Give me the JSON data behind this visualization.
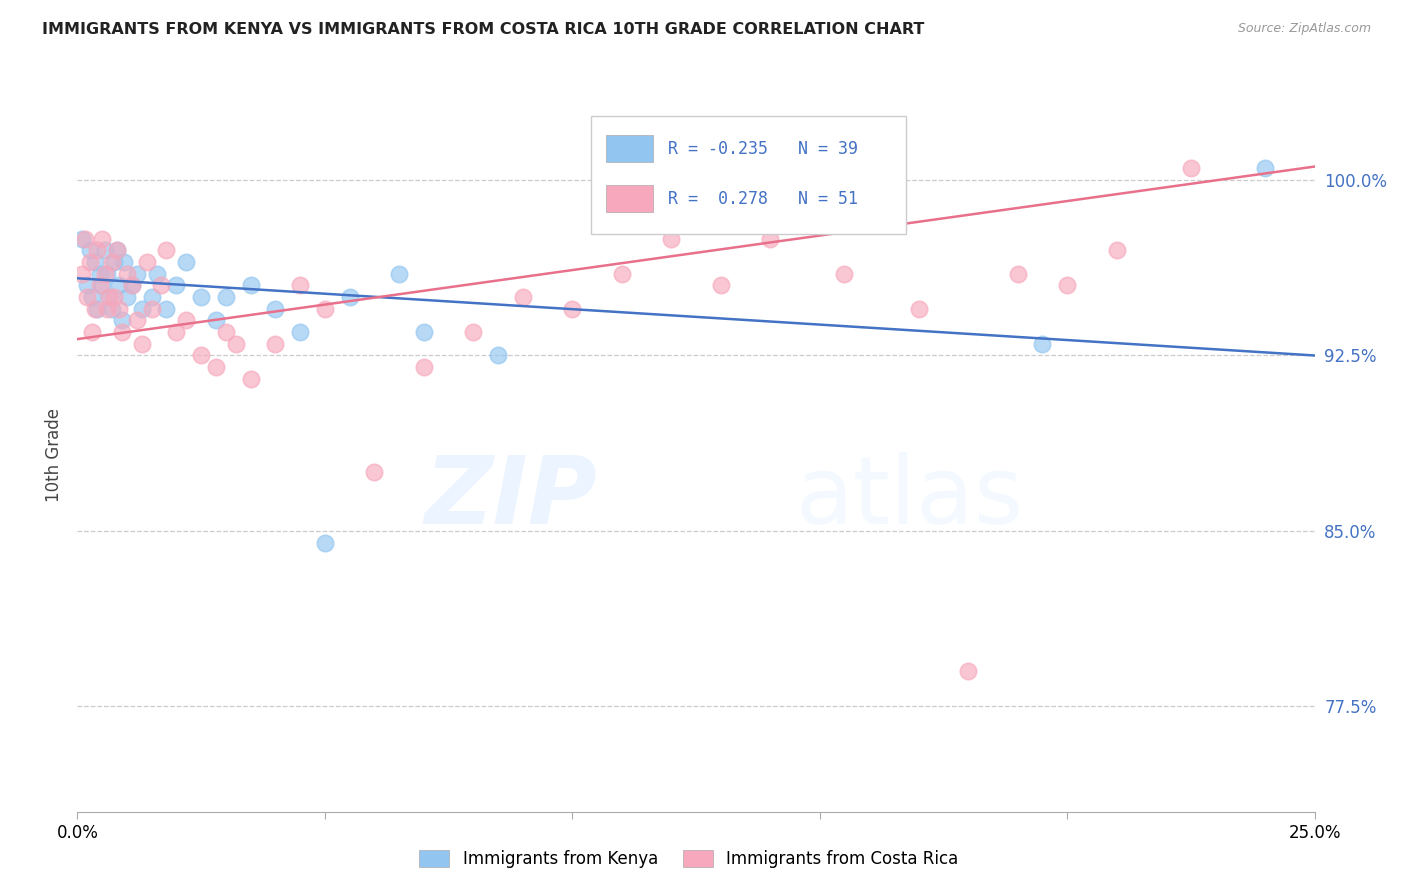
{
  "title": "IMMIGRANTS FROM KENYA VS IMMIGRANTS FROM COSTA RICA 10TH GRADE CORRELATION CHART",
  "source": "Source: ZipAtlas.com",
  "ylabel": "10th Grade",
  "xlim": [
    0.0,
    25.0
  ],
  "ylim": [
    73.0,
    103.5
  ],
  "y_ticks": [
    77.5,
    85.0,
    92.5,
    100.0
  ],
  "legend_r1": "-0.235",
  "legend_n1": "39",
  "legend_r2": "0.278",
  "legend_n2": "51",
  "series1_label": "Immigrants from Kenya",
  "series2_label": "Immigrants from Costa Rica",
  "series1_color": "#92C5F0",
  "series2_color": "#F7A8BC",
  "trendline1_color": "#4472C4",
  "trendline2_color": "#E8708A",
  "watermark_zip": "ZIP",
  "watermark_atlas": "atlas",
  "kenya_x": [
    0.1,
    0.2,
    0.25,
    0.3,
    0.35,
    0.4,
    0.45,
    0.5,
    0.55,
    0.6,
    0.65,
    0.7,
    0.75,
    0.8,
    0.85,
    0.9,
    0.95,
    1.0,
    1.1,
    1.2,
    1.3,
    1.5,
    1.6,
    1.8,
    2.0,
    2.2,
    2.5,
    2.8,
    3.0,
    3.5,
    4.0,
    4.5,
    5.0,
    5.5,
    6.5,
    7.0,
    8.5,
    19.5,
    24.0
  ],
  "kenya_y": [
    97.5,
    95.5,
    97.0,
    95.0,
    96.5,
    94.5,
    96.0,
    95.5,
    97.0,
    96.0,
    95.0,
    94.5,
    96.5,
    97.0,
    95.5,
    94.0,
    96.5,
    95.0,
    95.5,
    96.0,
    94.5,
    95.0,
    96.0,
    94.5,
    95.5,
    96.5,
    95.0,
    94.0,
    95.0,
    95.5,
    94.5,
    93.5,
    84.5,
    95.0,
    96.0,
    93.5,
    92.5,
    93.0,
    100.5
  ],
  "costarica_x": [
    0.1,
    0.15,
    0.2,
    0.25,
    0.3,
    0.35,
    0.4,
    0.45,
    0.5,
    0.55,
    0.6,
    0.65,
    0.7,
    0.75,
    0.8,
    0.85,
    0.9,
    1.0,
    1.1,
    1.2,
    1.3,
    1.4,
    1.5,
    1.7,
    1.8,
    2.0,
    2.2,
    2.5,
    2.8,
    3.0,
    3.2,
    3.5,
    4.0,
    4.5,
    5.0,
    6.0,
    7.0,
    8.0,
    9.0,
    10.0,
    11.0,
    12.0,
    13.0,
    14.0,
    15.5,
    17.0,
    18.0,
    19.0,
    20.0,
    21.0,
    22.5
  ],
  "costarica_y": [
    96.0,
    97.5,
    95.0,
    96.5,
    93.5,
    94.5,
    97.0,
    95.5,
    97.5,
    96.0,
    94.5,
    95.0,
    96.5,
    95.0,
    97.0,
    94.5,
    93.5,
    96.0,
    95.5,
    94.0,
    93.0,
    96.5,
    94.5,
    95.5,
    97.0,
    93.5,
    94.0,
    92.5,
    92.0,
    93.5,
    93.0,
    91.5,
    93.0,
    95.5,
    94.5,
    87.5,
    92.0,
    93.5,
    95.0,
    94.5,
    96.0,
    97.5,
    95.5,
    97.5,
    96.0,
    94.5,
    79.0,
    96.0,
    95.5,
    97.0,
    100.5
  ]
}
